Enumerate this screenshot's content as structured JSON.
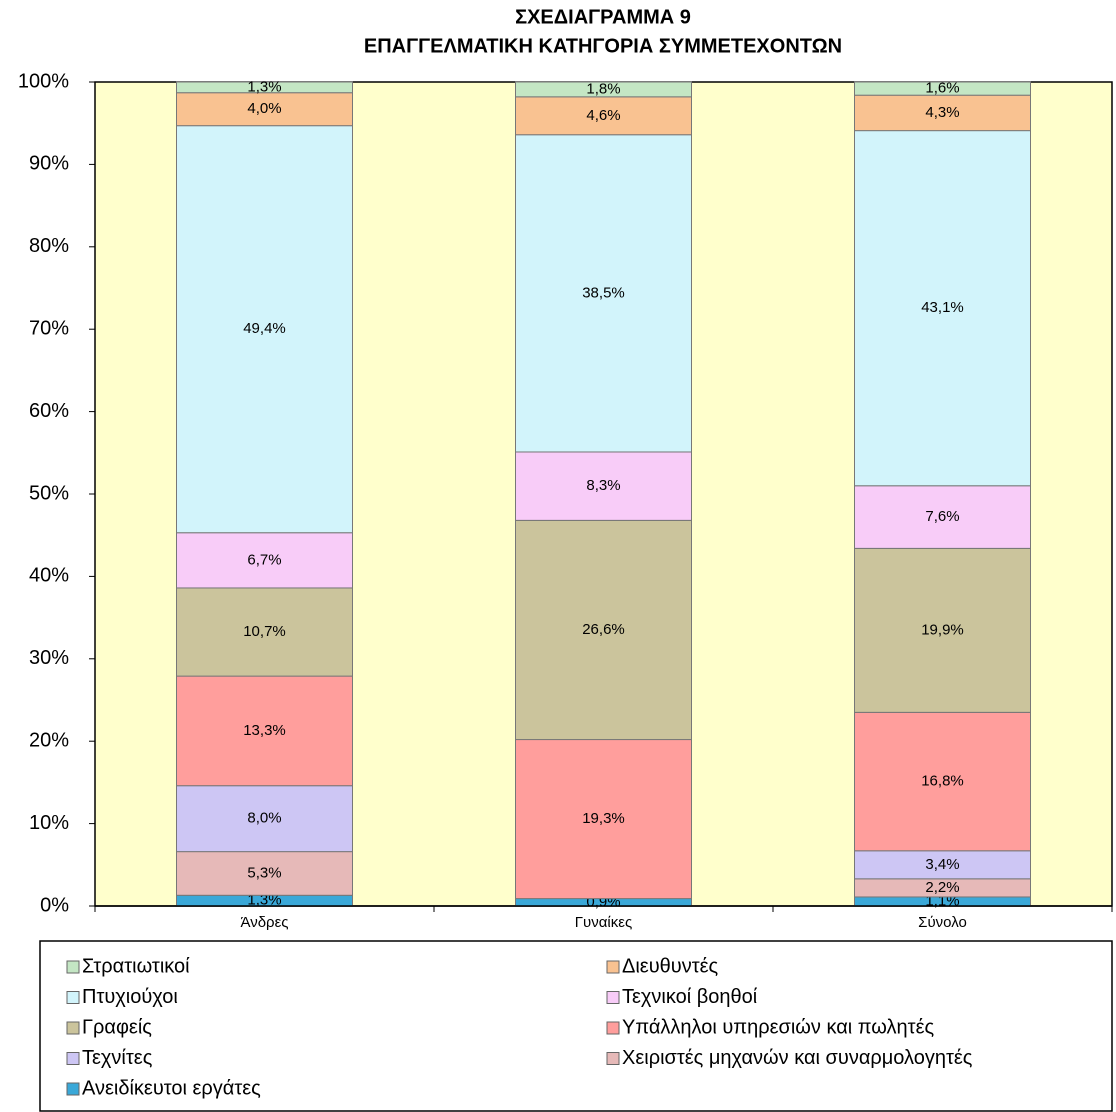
{
  "chart_data": {
    "type": "stacked_bar",
    "title": "ΣΧΕΔΙΑΓΡΑΜΜΑ 9",
    "subtitle": "ΕΠΑΓΓΕΛΜΑΤΙΚΗ  ΚΑΤΗΓΟΡΙΑ ΣΥΜΜΕΤΕΧΟΝΤΩΝ",
    "categories": [
      "Άνδρες",
      "Γυναίκες",
      "Σύνολο"
    ],
    "series": [
      {
        "name": "Ανειδίκευτοι εργάτες",
        "color": "#3aa8d8",
        "values": [
          1.3,
          0.9,
          1.1
        ],
        "value_labels": [
          "1,3%",
          "0,9%",
          "1,1%"
        ]
      },
      {
        "name": "Χειριστές μηχανών και συναρμολογητές",
        "color": "#e6b9b8",
        "values": [
          5.3,
          0,
          2.2
        ],
        "value_labels": [
          "5,3%",
          null,
          "2,2%"
        ]
      },
      {
        "name": "Τεχνίτες",
        "color": "#cdc6f4",
        "values": [
          8.0,
          0,
          3.4
        ],
        "value_labels": [
          "8,0%",
          null,
          "3,4%"
        ]
      },
      {
        "name": "Υπάλληλοι υπηρεσιών και πωλητές",
        "color": "#ff9e9c",
        "values": [
          13.3,
          19.3,
          16.8
        ],
        "value_labels": [
          "13,3%",
          "19,3%",
          "16,8%"
        ]
      },
      {
        "name": "Γραφείς",
        "color": "#cbc49c",
        "values": [
          10.7,
          26.6,
          19.9
        ],
        "value_labels": [
          "10,7%",
          "26,6%",
          "19,9%"
        ]
      },
      {
        "name": "Τεχνικοί βοηθοί",
        "color": "#f8ccf8",
        "values": [
          6.7,
          8.3,
          7.6
        ],
        "value_labels": [
          "6,7%",
          "8,3%",
          "7,6%"
        ]
      },
      {
        "name": "Πτυχιούχοι",
        "color": "#d2f4fb",
        "values": [
          49.4,
          38.5,
          43.1
        ],
        "value_labels": [
          "49,4%",
          "38,5%",
          "43,1%"
        ]
      },
      {
        "name": "Διευθυντές",
        "color": "#f9c291",
        "values": [
          4.0,
          4.6,
          4.3
        ],
        "value_labels": [
          "4,0%",
          "4,6%",
          "4,3%"
        ]
      },
      {
        "name": "Στρατιωτικοί",
        "color": "#c4e6c4",
        "values": [
          1.3,
          1.8,
          1.6
        ],
        "value_labels": [
          "1,3%",
          "1,8%",
          "1,6%"
        ]
      }
    ],
    "ylim": [
      0,
      100
    ],
    "yticks": [
      {
        "value": 0,
        "label": "0%"
      },
      {
        "value": 10,
        "label": "10%"
      },
      {
        "value": 20,
        "label": "20%"
      },
      {
        "value": 30,
        "label": "30%"
      },
      {
        "value": 40,
        "label": "40%"
      },
      {
        "value": 50,
        "label": "50%"
      },
      {
        "value": 60,
        "label": "60%"
      },
      {
        "value": 70,
        "label": "70%"
      },
      {
        "value": 80,
        "label": "80%"
      },
      {
        "value": 90,
        "label": "90%"
      },
      {
        "value": 100,
        "label": "100%"
      }
    ],
    "plot_background": "#ffffcc",
    "legend": "bottom"
  }
}
